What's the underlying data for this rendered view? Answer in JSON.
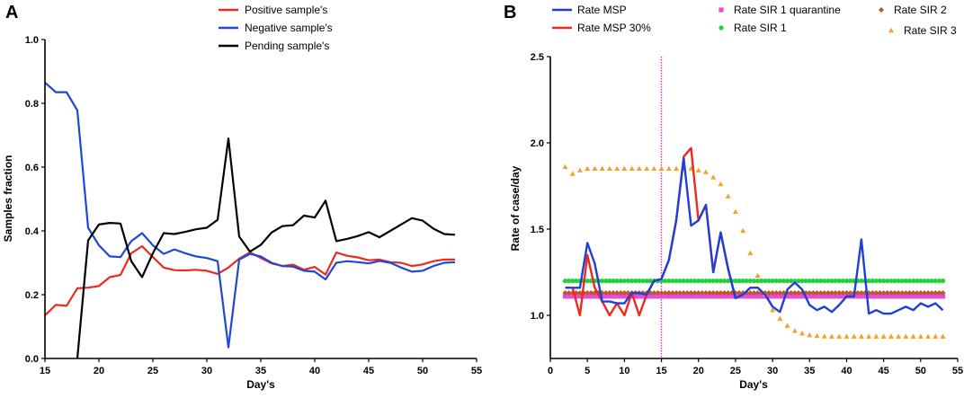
{
  "chart_data": [
    {
      "panel": "A",
      "type": "line",
      "xlabel": "Day's",
      "ylabel": "Samples fraction",
      "xlim": [
        15,
        55
      ],
      "ylim": [
        0.0,
        1.0
      ],
      "xticks": [
        15,
        20,
        25,
        30,
        35,
        40,
        45,
        50,
        55
      ],
      "yticks": [
        0.0,
        0.2,
        0.4,
        0.6,
        0.8,
        1.0
      ],
      "ytick_labels": [
        "0.0",
        "0.2",
        "0.4",
        "0.6",
        "0.8",
        "1.0"
      ],
      "legend_position": "top-center",
      "series": [
        {
          "name": "Positive sample's",
          "color": "#ee2a1f",
          "x": [
            15,
            16,
            17,
            18,
            19,
            20,
            21,
            22,
            23,
            24,
            25,
            26,
            27,
            28,
            29,
            30,
            31,
            32,
            33,
            34,
            35,
            36,
            37,
            38,
            39,
            40,
            41,
            42,
            43,
            44,
            45,
            46,
            47,
            48,
            49,
            50,
            51,
            52,
            53
          ],
          "y": [
            0.135,
            0.168,
            0.165,
            0.22,
            0.222,
            0.227,
            0.255,
            0.262,
            0.33,
            0.352,
            0.318,
            0.285,
            0.277,
            0.276,
            0.278,
            0.275,
            0.265,
            0.285,
            0.313,
            0.333,
            0.315,
            0.298,
            0.29,
            0.294,
            0.278,
            0.287,
            0.263,
            0.332,
            0.322,
            0.317,
            0.308,
            0.31,
            0.302,
            0.3,
            0.29,
            0.295,
            0.305,
            0.31,
            0.31
          ]
        },
        {
          "name": "Negative sample's",
          "color": "#1f47d8",
          "x": [
            15,
            16,
            17,
            18,
            19,
            20,
            21,
            22,
            23,
            24,
            25,
            26,
            27,
            28,
            29,
            30,
            31,
            32,
            33,
            34,
            35,
            36,
            37,
            38,
            39,
            40,
            41,
            42,
            43,
            44,
            45,
            46,
            47,
            48,
            49,
            50,
            51,
            52,
            53
          ],
          "y": [
            0.865,
            0.835,
            0.835,
            0.778,
            0.41,
            0.355,
            0.32,
            0.318,
            0.368,
            0.393,
            0.355,
            0.328,
            0.342,
            0.33,
            0.32,
            0.315,
            0.305,
            0.035,
            0.31,
            0.328,
            0.32,
            0.3,
            0.29,
            0.288,
            0.275,
            0.272,
            0.248,
            0.3,
            0.305,
            0.302,
            0.298,
            0.306,
            0.3,
            0.285,
            0.272,
            0.275,
            0.29,
            0.3,
            0.302
          ]
        },
        {
          "name": "Pending sample's",
          "color": "#000000",
          "x": [
            18,
            19,
            20,
            21,
            22,
            23,
            24,
            25,
            26,
            27,
            28,
            29,
            30,
            31,
            32,
            33,
            34,
            35,
            36,
            37,
            38,
            39,
            40,
            41,
            42,
            43,
            44,
            45,
            46,
            47,
            48,
            49,
            50,
            51,
            52,
            53
          ],
          "y": [
            0.0,
            0.37,
            0.42,
            0.425,
            0.423,
            0.305,
            0.255,
            0.33,
            0.393,
            0.39,
            0.397,
            0.405,
            0.41,
            0.435,
            0.69,
            0.382,
            0.335,
            0.356,
            0.395,
            0.415,
            0.418,
            0.448,
            0.442,
            0.495,
            0.368,
            0.375,
            0.384,
            0.396,
            0.38,
            0.4,
            0.42,
            0.44,
            0.432,
            0.407,
            0.39,
            0.388
          ]
        }
      ]
    },
    {
      "panel": "B",
      "type": "line",
      "xlabel": "Day's",
      "ylabel": "Rate of case/day",
      "xlim": [
        0,
        55
      ],
      "ylim": [
        0.75,
        2.5
      ],
      "xticks": [
        0,
        5,
        10,
        15,
        20,
        25,
        30,
        35,
        40,
        45,
        50,
        55
      ],
      "yticks": [
        1.0,
        1.5,
        2.0,
        2.5
      ],
      "ytick_labels": [
        "1.0",
        "1.5",
        "2.0",
        "2.5"
      ],
      "vline_x": 15,
      "legend_position": "top",
      "series": [
        {
          "name": "Rate MSP",
          "style": "line",
          "color": "#1f3fd6",
          "x": [
            2,
            3,
            4,
            5,
            6,
            7,
            8,
            9,
            10,
            11,
            12,
            13,
            14,
            15,
            16,
            17,
            18,
            19,
            20,
            21,
            22,
            23,
            24,
            25,
            26,
            27,
            28,
            29,
            30,
            31,
            32,
            33,
            34,
            35,
            36,
            37,
            38,
            39,
            40,
            41,
            42,
            43,
            44,
            45,
            46,
            47,
            48,
            49,
            50,
            51,
            52,
            53
          ],
          "y": [
            1.16,
            1.16,
            1.16,
            1.42,
            1.3,
            1.08,
            1.08,
            1.07,
            1.07,
            1.13,
            1.13,
            1.12,
            1.2,
            1.21,
            1.32,
            1.55,
            1.91,
            1.52,
            1.55,
            1.64,
            1.25,
            1.48,
            1.27,
            1.1,
            1.12,
            1.16,
            1.16,
            1.12,
            1.05,
            1.02,
            1.15,
            1.19,
            1.15,
            1.06,
            1.03,
            1.05,
            1.02,
            1.06,
            1.11,
            1.11,
            1.44,
            1.01,
            1.03,
            1.01,
            1.01,
            1.03,
            1.05,
            1.03,
            1.07,
            1.05,
            1.07,
            1.03
          ]
        },
        {
          "name": "Rate MSP 30%",
          "style": "line",
          "color": "#ee2a1f",
          "x": [
            2,
            3,
            4,
            5,
            6,
            7,
            8,
            9,
            10,
            11,
            12,
            13,
            14,
            15,
            16,
            17,
            18,
            19,
            20,
            21,
            22,
            23,
            24,
            25,
            26,
            27,
            28,
            29,
            30
          ],
          "y": [
            1.16,
            1.16,
            1.0,
            1.35,
            1.16,
            1.08,
            1.0,
            1.07,
            1.0,
            1.13,
            1.0,
            1.12,
            1.2,
            1.21,
            1.32,
            1.55,
            1.92,
            1.97,
            1.55,
            1.64,
            1.25,
            1.48,
            1.27,
            1.1,
            1.12,
            1.16,
            1.16,
            1.12,
            1.05
          ]
        },
        {
          "name": "Rate SIR 1 quarantine",
          "style": "square",
          "color": "#e24fe0",
          "value": 1.11,
          "x_start": 2,
          "x_end": 53
        },
        {
          "name": "Rate SIR 1",
          "style": "dot",
          "color": "#22d23a",
          "value": 1.2,
          "x_start": 2,
          "x_end": 53
        },
        {
          "name": "Rate SIR 2",
          "style": "diamond",
          "color": "#c0552a",
          "value": 1.13,
          "x_start": 2,
          "x_end": 53
        },
        {
          "name": "Rate SIR 3",
          "style": "triangle",
          "color": "#f2a22c",
          "x": [
            2,
            3,
            4,
            5,
            6,
            7,
            8,
            9,
            10,
            11,
            12,
            13,
            14,
            15,
            16,
            17,
            18,
            19,
            20,
            21,
            22,
            23,
            24,
            25,
            26,
            27,
            28,
            29,
            30,
            31,
            32,
            33,
            34,
            35,
            36,
            37,
            38,
            39,
            40,
            41,
            42,
            43,
            44,
            45,
            46,
            47,
            48,
            49,
            50,
            51,
            52,
            53
          ],
          "y": [
            1.86,
            1.82,
            1.84,
            1.85,
            1.85,
            1.85,
            1.85,
            1.85,
            1.85,
            1.85,
            1.85,
            1.85,
            1.85,
            1.85,
            1.85,
            1.85,
            1.85,
            1.85,
            1.84,
            1.83,
            1.8,
            1.76,
            1.69,
            1.6,
            1.49,
            1.36,
            1.23,
            1.12,
            1.03,
            0.98,
            0.94,
            0.91,
            0.895,
            0.885,
            0.88,
            0.878,
            0.877,
            0.877,
            0.877,
            0.877,
            0.877,
            0.877,
            0.877,
            0.877,
            0.877,
            0.877,
            0.877,
            0.877,
            0.877,
            0.877,
            0.877,
            0.877
          ]
        }
      ]
    }
  ]
}
